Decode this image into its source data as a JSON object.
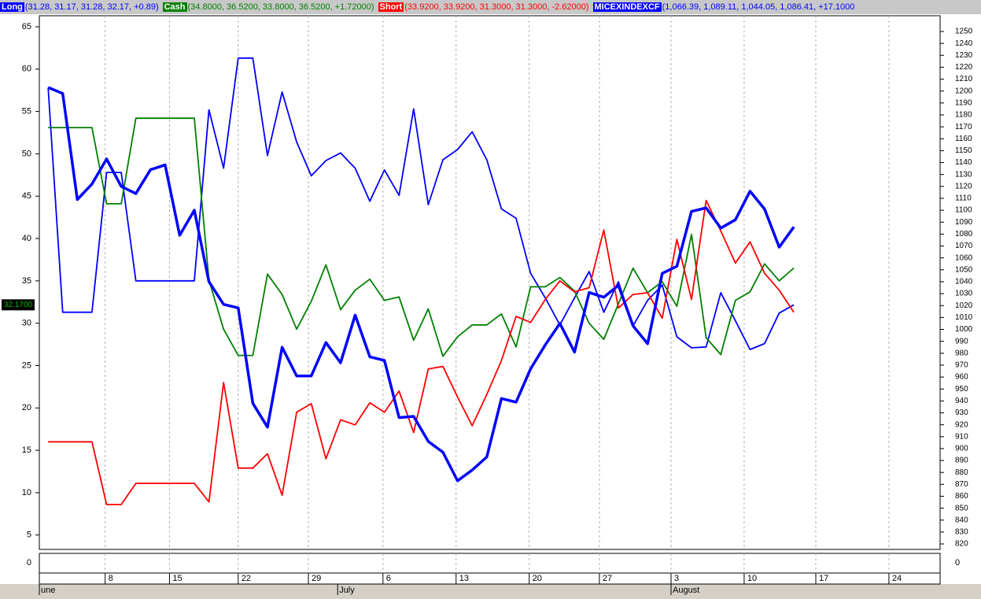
{
  "chart_data": {
    "type": "line",
    "x": [
      0,
      1,
      2,
      3,
      4,
      5,
      6,
      7,
      8,
      9,
      10,
      11,
      12,
      13,
      14,
      15,
      16,
      17,
      18,
      19,
      20,
      21,
      22,
      23,
      24,
      25,
      26,
      27,
      28,
      29,
      30,
      31,
      32,
      33,
      34,
      35,
      36,
      37,
      38,
      39,
      40,
      41,
      42,
      43,
      44,
      45,
      46,
      47,
      48,
      49,
      50,
      51
    ],
    "xlim": [
      -0.6,
      61
    ],
    "xticks": [
      {
        "value": 3.9,
        "label": "8"
      },
      {
        "value": 8.3,
        "label": "15"
      },
      {
        "value": 13.0,
        "label": "22"
      },
      {
        "value": 17.8,
        "label": "29"
      },
      {
        "value": 22.9,
        "label": "6"
      },
      {
        "value": 27.9,
        "label": "13"
      },
      {
        "value": 32.9,
        "label": "20"
      },
      {
        "value": 37.7,
        "label": "27"
      },
      {
        "value": 42.6,
        "label": "3"
      },
      {
        "value": 47.6,
        "label": "10"
      },
      {
        "value": 52.5,
        "label": "17"
      },
      {
        "value": 57.5,
        "label": "24"
      }
    ],
    "month_ticks": [
      {
        "value": -0.6,
        "label": "une"
      },
      {
        "value": 19.8,
        "label": "July"
      },
      {
        "value": 42.6,
        "label": "August"
      }
    ],
    "ylim": [
      3.3,
      66.3
    ],
    "yticks": [
      5,
      10,
      15,
      20,
      25,
      30,
      35,
      40,
      45,
      50,
      55,
      60,
      65
    ],
    "y2lim": [
      815.4,
      1263.2
    ],
    "y2ticks": [
      820,
      830,
      840,
      850,
      860,
      870,
      880,
      890,
      900,
      910,
      920,
      930,
      940,
      950,
      960,
      970,
      980,
      990,
      1000,
      1010,
      1020,
      1030,
      1040,
      1050,
      1060,
      1070,
      1080,
      1090,
      1100,
      1110,
      1120,
      1130,
      1140,
      1150,
      1160,
      1170,
      1180,
      1190,
      1200,
      1210,
      1220,
      1230,
      1240,
      1250
    ],
    "lower_panel_ticks": [
      0
    ],
    "grid": true,
    "last_value": {
      "value": 32.17,
      "label": "32.1700"
    },
    "series": [
      {
        "name": "Long",
        "summary": "(31.28, 31.17, 31.28, 32.17, +0.89)",
        "color": "#0000ff",
        "values": [
          57.8,
          31.3,
          31.3,
          31.3,
          47.8,
          47.8,
          35,
          35,
          35,
          35,
          35,
          55.2,
          48.3,
          61.3,
          61.3,
          49.8,
          57.3,
          51.4,
          47.4,
          49.2,
          50.1,
          48.3,
          44.4,
          48.1,
          45.1,
          55.3,
          44,
          49.3,
          50.5,
          52.6,
          49.3,
          43.5,
          42.4,
          35.9,
          33,
          29.8,
          33,
          36.1,
          31.3,
          34.9,
          29.7,
          32.7,
          34.5,
          28.4,
          27.1,
          27.2,
          33.6,
          30.3,
          26.9,
          27.6,
          31.2,
          32.17
        ]
      },
      {
        "name": "Cash",
        "summary": "(34.8000, 36.5200, 33.8000, 36.5200, +1.72000)",
        "color": "#008000",
        "values": [
          53.1,
          53.1,
          53.1,
          53.1,
          44.1,
          44.1,
          54.2,
          54.2,
          54.2,
          54.2,
          54.2,
          35.1,
          29.3,
          26.2,
          26.2,
          35.8,
          33.4,
          29.3,
          32.6,
          36.9,
          31.6,
          33.9,
          35.2,
          32.7,
          33.1,
          28,
          31.7,
          26.1,
          28.4,
          29.8,
          29.8,
          31.1,
          27.2,
          34.3,
          34.3,
          35.4,
          33.8,
          30,
          28.1,
          32.3,
          36.5,
          33.6,
          34.9,
          32,
          40.5,
          28.3,
          26.3,
          32.7,
          33.7,
          37,
          35,
          36.52
        ]
      },
      {
        "name": "Short",
        "summary": "(33.9200, 33.9200, 31.3000, 31.3000, -2.62000)",
        "color": "#ff0000",
        "values": [
          16,
          16,
          16,
          16,
          8.6,
          8.6,
          11.1,
          11.1,
          11.1,
          11.1,
          11.1,
          8.9,
          23,
          12.9,
          12.9,
          14.6,
          9.7,
          19.5,
          20.5,
          14,
          18.6,
          18,
          20.6,
          19.5,
          22,
          17.1,
          24.6,
          24.9,
          21.3,
          17.9,
          21.6,
          25.6,
          30.8,
          30.1,
          32.8,
          35,
          33.7,
          34.2,
          41,
          31.8,
          33.4,
          33.6,
          30.6,
          39.9,
          32.8,
          44.5,
          40.9,
          37.1,
          39.6,
          35.9,
          33.9,
          31.3
        ]
      },
      {
        "name": "MICEXINDEXCF",
        "summary": "(1,066.39, 1,089.11, 1,044.05, 1,086.41, +17.1000",
        "color": "#0000ff",
        "axis": "y2",
        "values": [
          1203,
          1198,
          1109,
          1122,
          1143,
          1120,
          1114,
          1134,
          1138,
          1079,
          1100,
          1040,
          1021,
          1018,
          938,
          918,
          985,
          961,
          961,
          989,
          972,
          1012,
          977,
          974,
          926,
          927,
          906,
          897,
          873,
          882,
          893,
          942,
          939,
          967,
          987,
          1005,
          981,
          1031,
          1027,
          1037,
          1003,
          988,
          1047,
          1053,
          1099,
          1102,
          1085,
          1092,
          1116,
          1101,
          1069,
          1086
        ]
      }
    ]
  }
}
